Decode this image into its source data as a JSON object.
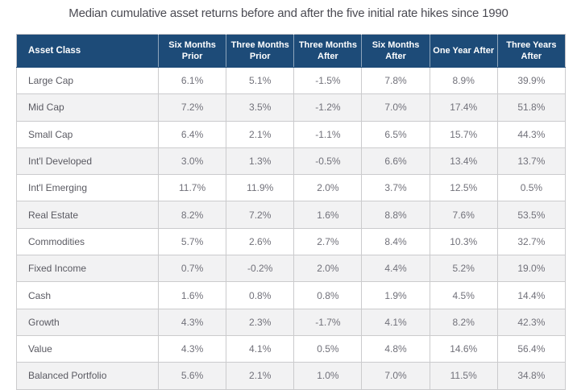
{
  "chart_data": {
    "type": "table",
    "title": "Median cumulative asset returns before and after the five initial rate hikes since 1990",
    "columns": [
      "Asset Class",
      "Six Months Prior",
      "Three Months Prior",
      "Three Months After",
      "Six Months After",
      "One Year After",
      "Three Years After"
    ],
    "rows": [
      {
        "label": "Large Cap",
        "values": [
          "6.1%",
          "5.1%",
          "-1.5%",
          "7.8%",
          "8.9%",
          "39.9%"
        ]
      },
      {
        "label": "Mid Cap",
        "values": [
          "7.2%",
          "3.5%",
          "-1.2%",
          "7.0%",
          "17.4%",
          "51.8%"
        ]
      },
      {
        "label": "Small Cap",
        "values": [
          "6.4%",
          "2.1%",
          "-1.1%",
          "6.5%",
          "15.7%",
          "44.3%"
        ]
      },
      {
        "label": "Int'l Developed",
        "values": [
          "3.0%",
          "1.3%",
          "-0.5%",
          "6.6%",
          "13.4%",
          "13.7%"
        ]
      },
      {
        "label": "Int'l Emerging",
        "values": [
          "11.7%",
          "11.9%",
          "2.0%",
          "3.7%",
          "12.5%",
          "0.5%"
        ]
      },
      {
        "label": "Real Estate",
        "values": [
          "8.2%",
          "7.2%",
          "1.6%",
          "8.8%",
          "7.6%",
          "53.5%"
        ]
      },
      {
        "label": "Commodities",
        "values": [
          "5.7%",
          "2.6%",
          "2.7%",
          "8.4%",
          "10.3%",
          "32.7%"
        ]
      },
      {
        "label": "Fixed Income",
        "values": [
          "0.7%",
          "-0.2%",
          "2.0%",
          "4.4%",
          "5.2%",
          "19.0%"
        ]
      },
      {
        "label": "Cash",
        "values": [
          "1.6%",
          "0.8%",
          "0.8%",
          "1.9%",
          "4.5%",
          "14.4%"
        ]
      },
      {
        "label": "Growth",
        "values": [
          "4.3%",
          "2.3%",
          "-1.7%",
          "4.1%",
          "8.2%",
          "42.3%"
        ]
      },
      {
        "label": "Value",
        "values": [
          "4.3%",
          "4.1%",
          "0.5%",
          "4.8%",
          "14.6%",
          "56.4%"
        ]
      },
      {
        "label": "Balanced Portfolio",
        "values": [
          "5.6%",
          "2.1%",
          "1.0%",
          "7.0%",
          "11.5%",
          "34.8%"
        ]
      }
    ],
    "layout": {
      "striped_rows": true,
      "stripe_pattern": "even rows shaded",
      "header_position": "top"
    }
  },
  "colors": {
    "header_bg": "#1d4b78",
    "header_text": "#ffffff",
    "title_text": "#4b4b53",
    "row_bg": "#ffffff",
    "row_alt_bg": "#f2f2f3",
    "grid_line": "#cbcbcd",
    "label_text": "#5a5a62",
    "value_text": "#71717a"
  }
}
